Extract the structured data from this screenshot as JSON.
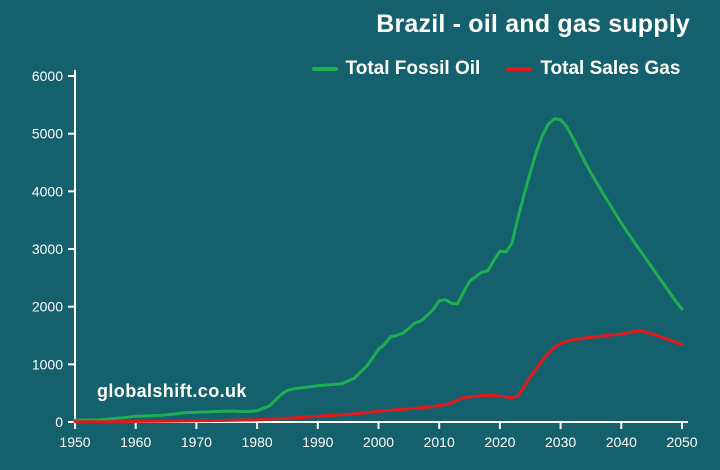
{
  "watermark": "globalshift.co.uk",
  "colors": {
    "background": "#15606d",
    "axis": "#ffffff",
    "text": "#ffffff"
  },
  "chart_data": {
    "type": "line",
    "title": "Brazil - oil and gas supply",
    "xlabel": "",
    "ylabel": "",
    "xlim": [
      1950,
      2050
    ],
    "ylim": [
      0,
      6000
    ],
    "x_ticks": [
      1950,
      1960,
      1970,
      1980,
      1990,
      2000,
      2010,
      2020,
      2030,
      2040,
      2050
    ],
    "y_ticks": [
      0,
      1000,
      2000,
      3000,
      4000,
      5000,
      6000
    ],
    "grid": false,
    "legend_position": "top-center",
    "series": [
      {
        "name": "Total Fossil Oil",
        "color": "#1fae52",
        "x": [
          1950,
          1952,
          1954,
          1956,
          1958,
          1960,
          1962,
          1964,
          1966,
          1968,
          1970,
          1972,
          1974,
          1976,
          1978,
          1980,
          1982,
          1984,
          1985,
          1986,
          1988,
          1990,
          1992,
          1994,
          1996,
          1998,
          2000,
          2001,
          2002,
          2003,
          2004,
          2005,
          2006,
          2007,
          2008,
          2009,
          2010,
          2011,
          2012,
          2013,
          2014,
          2015,
          2016,
          2017,
          2018,
          2019,
          2020,
          2021,
          2022,
          2023,
          2024,
          2025,
          2026,
          2027,
          2028,
          2029,
          2030,
          2031,
          2032,
          2033,
          2034,
          2035,
          2036,
          2037,
          2038,
          2039,
          2040,
          2041,
          2042,
          2043,
          2044,
          2045,
          2046,
          2047,
          2048,
          2049,
          2050
        ],
        "y": [
          30,
          35,
          40,
          55,
          75,
          100,
          105,
          115,
          135,
          160,
          170,
          175,
          185,
          190,
          180,
          195,
          280,
          480,
          550,
          575,
          600,
          630,
          645,
          665,
          760,
          960,
          1260,
          1350,
          1480,
          1500,
          1540,
          1620,
          1720,
          1750,
          1850,
          1950,
          2100,
          2120,
          2060,
          2050,
          2250,
          2440,
          2520,
          2600,
          2620,
          2800,
          2960,
          2950,
          3100,
          3550,
          3950,
          4330,
          4680,
          4970,
          5170,
          5260,
          5240,
          5120,
          4930,
          4720,
          4510,
          4320,
          4140,
          3960,
          3790,
          3620,
          3450,
          3290,
          3140,
          2990,
          2840,
          2690,
          2540,
          2390,
          2240,
          2090,
          1960
        ]
      },
      {
        "name": "Total Sales Gas",
        "color": "#e01a1a",
        "x": [
          1950,
          1955,
          1960,
          1965,
          1970,
          1975,
          1980,
          1985,
          1988,
          1990,
          1992,
          1994,
          1996,
          1998,
          2000,
          2002,
          2004,
          2006,
          2008,
          2010,
          2011,
          2012,
          2013,
          2014,
          2015,
          2016,
          2017,
          2018,
          2019,
          2020,
          2021,
          2022,
          2023,
          2024,
          2025,
          2026,
          2027,
          2028,
          2029,
          2030,
          2031,
          2032,
          2033,
          2034,
          2035,
          2036,
          2037,
          2038,
          2039,
          2040,
          2041,
          2042,
          2043,
          2044,
          2045,
          2046,
          2047,
          2048,
          2049,
          2050
        ],
        "y": [
          3,
          6,
          10,
          15,
          20,
          28,
          38,
          65,
          85,
          100,
          115,
          125,
          140,
          160,
          185,
          205,
          220,
          235,
          255,
          285,
          300,
          330,
          380,
          420,
          435,
          445,
          455,
          465,
          460,
          450,
          435,
          420,
          450,
          620,
          780,
          930,
          1070,
          1200,
          1300,
          1360,
          1400,
          1425,
          1440,
          1455,
          1470,
          1480,
          1495,
          1505,
          1515,
          1525,
          1545,
          1565,
          1580,
          1565,
          1530,
          1495,
          1460,
          1420,
          1380,
          1340
        ]
      }
    ]
  }
}
